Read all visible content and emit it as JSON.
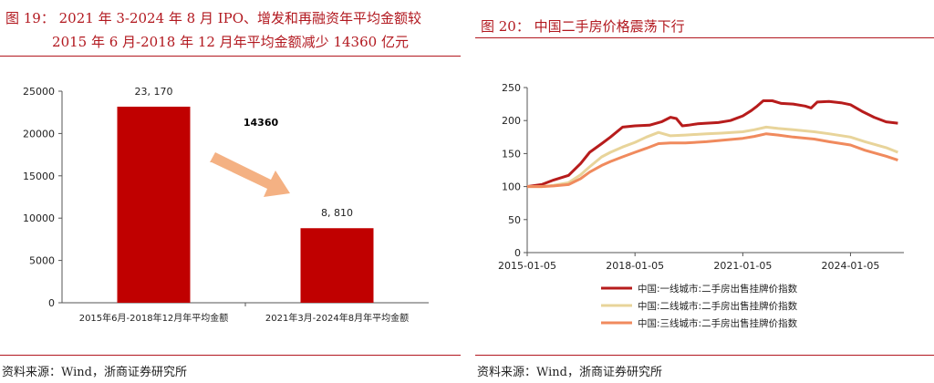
{
  "left": {
    "title_line1": "图 19：  2021 年 3-2024 年 8 月 IPO、增发和再融资年平均金额较",
    "title_line2": "2015 年 6 月-2018 年 12 月年平均金额减少 14360 亿元",
    "source": "资料来源：Wind，浙商证券研究所"
  },
  "right": {
    "title": "图 20：   中国二手房价格震荡下行",
    "source": "资料来源：Wind，浙商证券研究所"
  },
  "colors": {
    "accent": "#b2181f",
    "bar": "#c00000",
    "arrow": "#f4b183",
    "tier1": "#b71c1c",
    "tier2": "#e8d49a",
    "tier3": "#f08a5d"
  },
  "chart_data": [
    {
      "type": "bar",
      "categories": [
        "2015年6月-2018年12月年平均金额",
        "2021年3月-2024年8月年平均金额"
      ],
      "values": [
        23170,
        8810
      ],
      "data_labels": [
        "23, 170",
        "8, 810"
      ],
      "annotation": "14360",
      "ylim": [
        0,
        25000
      ],
      "yticks": [
        0,
        5000,
        10000,
        15000,
        20000,
        25000
      ],
      "grid": false
    },
    {
      "type": "line",
      "ylim": [
        0,
        250
      ],
      "yticks": [
        0,
        50,
        100,
        150,
        200,
        250
      ],
      "xlim": [
        "2015-01-05",
        "2025-07-01"
      ],
      "xticks": [
        "2015-01-05",
        "2018-01-05",
        "2021-01-05",
        "2024-01-05"
      ],
      "grid": false,
      "legend": "bottom",
      "series": [
        {
          "name": "中国:一线城市:二手房出售挂牌价指数",
          "points": [
            [
              "2015-01-05",
              100
            ],
            [
              "2015-06-01",
              103
            ],
            [
              "2015-10-01",
              110
            ],
            [
              "2016-03-01",
              117
            ],
            [
              "2016-07-01",
              135
            ],
            [
              "2016-10-01",
              152
            ],
            [
              "2017-02-01",
              165
            ],
            [
              "2017-05-01",
              175
            ],
            [
              "2017-09-01",
              190
            ],
            [
              "2018-01-05",
              192
            ],
            [
              "2018-06-01",
              193
            ],
            [
              "2018-10-01",
              198
            ],
            [
              "2019-01-01",
              205
            ],
            [
              "2019-03-01",
              203
            ],
            [
              "2019-05-01",
              192
            ],
            [
              "2019-07-01",
              193
            ],
            [
              "2019-10-01",
              195
            ],
            [
              "2020-01-01",
              196
            ],
            [
              "2020-05-01",
              197
            ],
            [
              "2020-09-01",
              200
            ],
            [
              "2021-01-05",
              207
            ],
            [
              "2021-04-01",
              215
            ],
            [
              "2021-06-01",
              222
            ],
            [
              "2021-08-01",
              230
            ],
            [
              "2021-11-01",
              230
            ],
            [
              "2022-02-01",
              226
            ],
            [
              "2022-06-01",
              225
            ],
            [
              "2022-10-01",
              222
            ],
            [
              "2022-12-01",
              219
            ],
            [
              "2023-02-01",
              228
            ],
            [
              "2023-06-01",
              229
            ],
            [
              "2023-10-01",
              227
            ],
            [
              "2024-01-05",
              224
            ],
            [
              "2024-05-01",
              214
            ],
            [
              "2024-09-01",
              205
            ],
            [
              "2025-01-01",
              198
            ],
            [
              "2025-05-01",
              196
            ]
          ]
        },
        {
          "name": "中国:二线城市:二手房出售挂牌价指数",
          "points": [
            [
              "2015-01-05",
              100
            ],
            [
              "2015-06-01",
              100
            ],
            [
              "2015-10-01",
              102
            ],
            [
              "2016-03-01",
              106
            ],
            [
              "2016-07-01",
              118
            ],
            [
              "2016-10-01",
              130
            ],
            [
              "2017-02-01",
              145
            ],
            [
              "2017-05-01",
              152
            ],
            [
              "2017-09-01",
              160
            ],
            [
              "2018-01-05",
              167
            ],
            [
              "2018-05-01",
              175
            ],
            [
              "2018-09-01",
              182
            ],
            [
              "2019-01-01",
              177
            ],
            [
              "2019-06-01",
              178
            ],
            [
              "2020-01-01",
              180
            ],
            [
              "2020-06-01",
              181
            ],
            [
              "2021-01-05",
              183
            ],
            [
              "2021-05-01",
              186
            ],
            [
              "2021-09-01",
              190
            ],
            [
              "2022-01-01",
              188
            ],
            [
              "2022-06-01",
              186
            ],
            [
              "2023-01-01",
              183
            ],
            [
              "2023-06-01",
              180
            ],
            [
              "2024-01-05",
              175
            ],
            [
              "2024-06-01",
              168
            ],
            [
              "2025-01-01",
              159
            ],
            [
              "2025-05-01",
              152
            ]
          ]
        },
        {
          "name": "中国:三线城市:二手房出售挂牌价指数",
          "points": [
            [
              "2015-01-05",
              100
            ],
            [
              "2015-06-01",
              100
            ],
            [
              "2015-10-01",
              101
            ],
            [
              "2016-03-01",
              103
            ],
            [
              "2016-07-01",
              112
            ],
            [
              "2016-10-01",
              122
            ],
            [
              "2017-02-01",
              132
            ],
            [
              "2017-05-01",
              138
            ],
            [
              "2017-09-01",
              145
            ],
            [
              "2018-01-05",
              152
            ],
            [
              "2018-05-01",
              158
            ],
            [
              "2018-09-01",
              165
            ],
            [
              "2019-01-01",
              166
            ],
            [
              "2019-06-01",
              166
            ],
            [
              "2020-01-01",
              168
            ],
            [
              "2020-06-01",
              170
            ],
            [
              "2021-01-05",
              173
            ],
            [
              "2021-05-01",
              176
            ],
            [
              "2021-09-01",
              180
            ],
            [
              "2022-01-01",
              178
            ],
            [
              "2022-06-01",
              175
            ],
            [
              "2023-01-01",
              172
            ],
            [
              "2023-06-01",
              168
            ],
            [
              "2024-01-05",
              163
            ],
            [
              "2024-06-01",
              155
            ],
            [
              "2025-01-01",
              146
            ],
            [
              "2025-05-01",
              140
            ]
          ]
        }
      ]
    }
  ]
}
